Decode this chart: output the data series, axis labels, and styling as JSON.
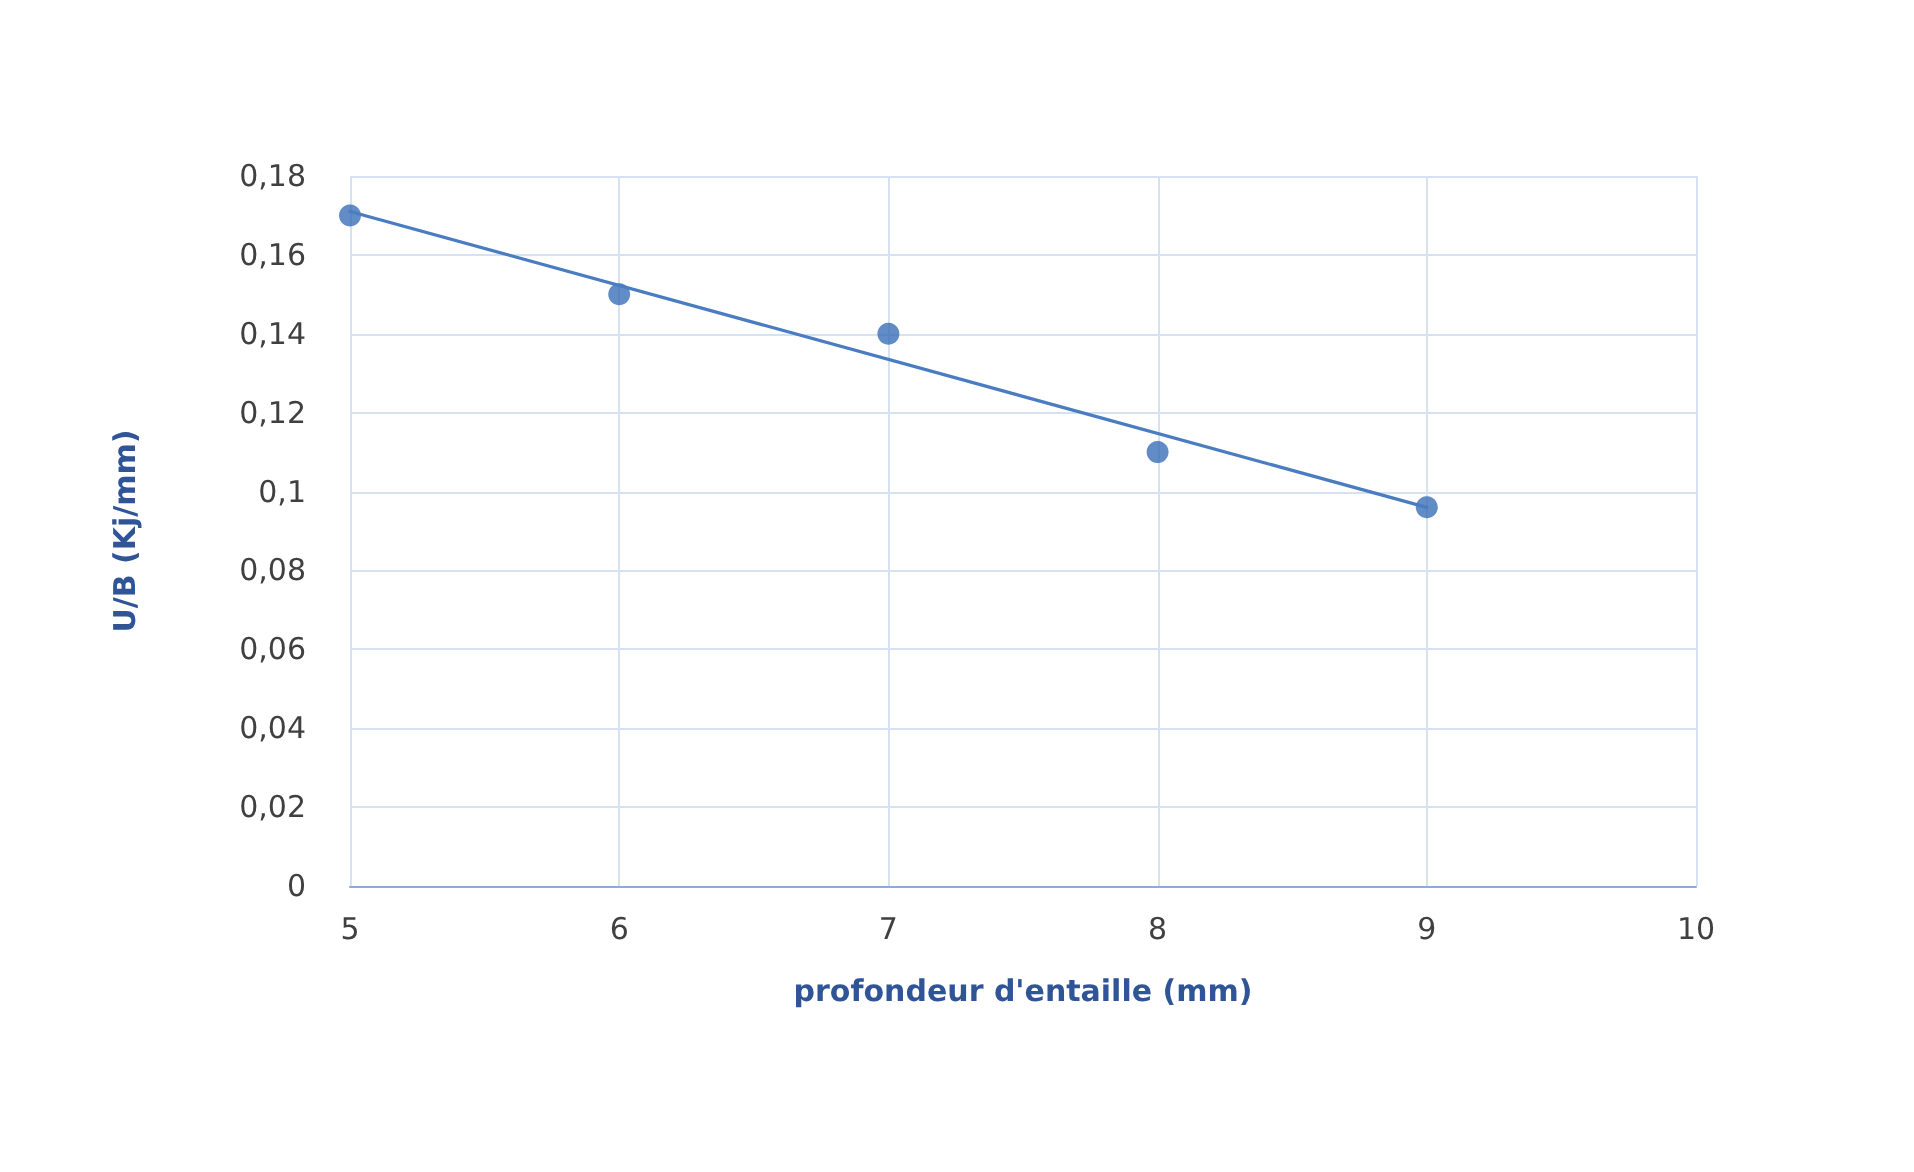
{
  "chart_data": {
    "type": "scatter",
    "xlabel": "profondeur d'entaille (mm)",
    "ylabel": "U/B (Kj/mm)",
    "xlim": [
      5,
      10
    ],
    "xticks": [
      5,
      6,
      7,
      8,
      9,
      10
    ],
    "ylim": [
      0,
      0.18
    ],
    "yticks": [
      0,
      {
        "value": 0.02,
        "label": "0,02"
      },
      {
        "value": 0.04,
        "label": "0,04"
      },
      {
        "value": 0.06,
        "label": "0,06"
      },
      {
        "value": 0.08,
        "label": "0,08"
      },
      {
        "value": 0.1,
        "label": "0,1"
      },
      {
        "value": 0.12,
        "label": "0,12"
      },
      {
        "value": 0.14,
        "label": "0,14"
      },
      {
        "value": 0.16,
        "label": "0,16"
      },
      {
        "value": 0.18,
        "label": "0,18"
      }
    ],
    "grid": true,
    "marker": "circle",
    "series": [
      {
        "color": "#3a6fb7",
        "x": [
          5,
          6,
          7,
          8,
          9
        ],
        "values": [
          0.17,
          0.15,
          0.14,
          0.11,
          0.096
        ]
      },
      {
        "type": "line",
        "color": "#4a7cc2",
        "marker": "none",
        "line_style": "solid",
        "x": [
          5,
          9
        ],
        "values": [
          0.171,
          0.096
        ]
      }
    ]
  }
}
